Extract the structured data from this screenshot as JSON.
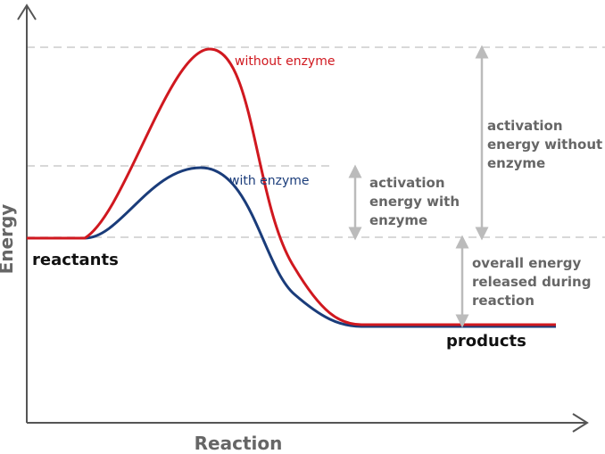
{
  "colors": {
    "without_enzyme": "#d0181f",
    "with_enzyme": "#1a3c7a",
    "axis": "#555555",
    "guide": "#cccccc",
    "bracket": "#bbbbbb",
    "annotation": "#666666"
  },
  "axes": {
    "x_label": "Reaction",
    "y_label": "Energy"
  },
  "curves": {
    "without_enzyme": "without enzyme",
    "with_enzyme": "with enzyme"
  },
  "states": {
    "reactants": "reactants",
    "products": "products"
  },
  "annotations": {
    "activation_with": [
      "activation",
      "energy with",
      "enzyme"
    ],
    "activation_without": [
      "activation",
      "energy without",
      "enzyme"
    ],
    "overall": [
      "overall energy",
      "released during",
      "reaction"
    ]
  }
}
